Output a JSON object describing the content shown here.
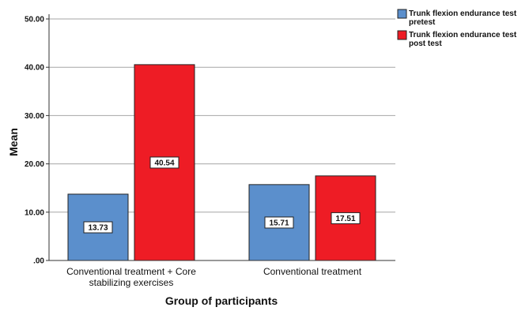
{
  "chart_data": {
    "type": "bar",
    "title": "",
    "xlabel": "Group of participants",
    "ylabel": "Mean",
    "ylim": [
      0,
      50
    ],
    "yticks": [
      0,
      10,
      20,
      30,
      40,
      50
    ],
    "ytick_labels": [
      ".00",
      "10.00",
      "20.00",
      "30.00",
      "40.00",
      "50.00"
    ],
    "grid": true,
    "legend_position": "top-right",
    "categories": [
      [
        "Conventional treatment + Core",
        "stabilizing exercises"
      ],
      [
        "Conventional treatment"
      ]
    ],
    "series": [
      {
        "name": [
          "Trunk flexion endurance test",
          "pretest"
        ],
        "color": "#5b8fcc",
        "values": [
          13.73,
          15.71
        ],
        "labels": [
          "13.73",
          "15.71"
        ]
      },
      {
        "name": [
          "Trunk flexion endurance test",
          "post test"
        ],
        "color": "#ee1c25",
        "values": [
          40.54,
          17.51
        ],
        "labels": [
          "40.54",
          "17.51"
        ]
      }
    ]
  }
}
